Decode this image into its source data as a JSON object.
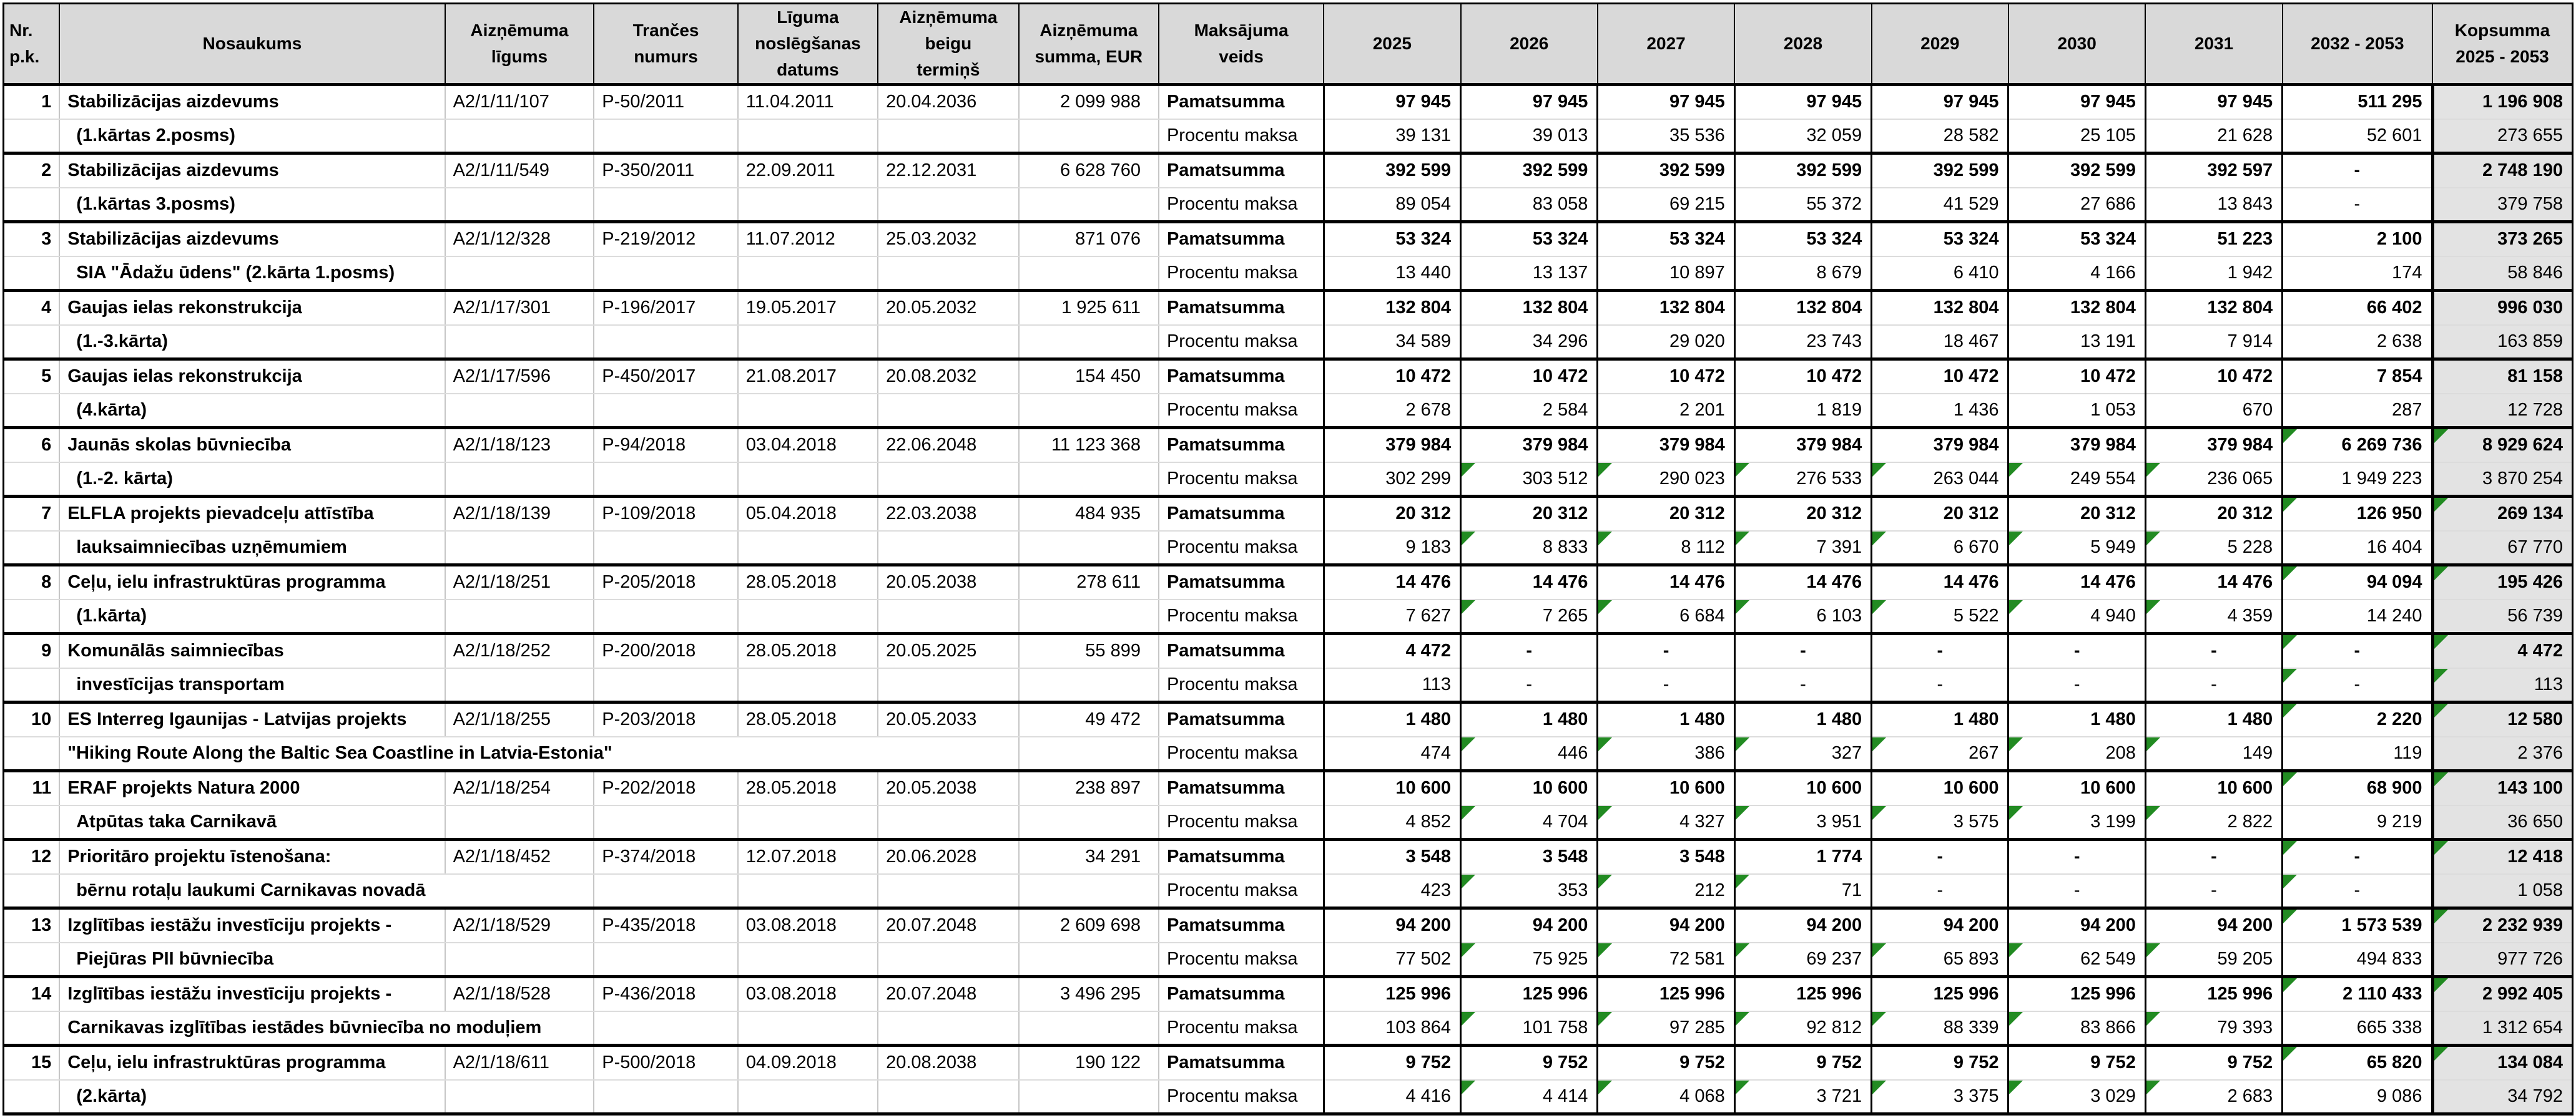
{
  "colors": {
    "header_bg": "#d9d9d9",
    "total_column_bg": "#e3e3e3",
    "flag_triangle_green": "#228B22",
    "grid_light": "#c6c6c6",
    "grid_dark": "#000000"
  },
  "table": {
    "headers": [
      "Nr.\np.k.",
      "Nosaukums",
      "Aizņēmuma\nlīgums",
      "Trančes\nnumurs",
      "Līguma\nnoslēgšanas\ndatums",
      "Aizņēmuma\nbeigu\ntermiņš",
      "Aizņēmuma\nsumma, EUR",
      "Maksājuma\nveids",
      "2025",
      "2026",
      "2027",
      "2028",
      "2029",
      "2030",
      "2031",
      "2032 - 2053",
      "Kopsumma\n2025 - 2053"
    ],
    "payment_labels": {
      "principal": "Pamatsumma",
      "interest": "Procentu maksa"
    },
    "rows": [
      {
        "nr": "1",
        "name": [
          "Stabilizācijas aizdevums",
          "(1.kārtas 2.posms)"
        ],
        "name2_span": 1,
        "name2_indent": true,
        "ligums": "A2/1/11/107",
        "trance": "P-50/2011",
        "noslegsanas": "11.04.2011",
        "beigu": "20.04.2036",
        "summa": "2 099 988",
        "pamatsumma": [
          "97 945",
          "97 945",
          "97 945",
          "97 945",
          "97 945",
          "97 945",
          "97 945",
          "511 295",
          "1 196 908"
        ],
        "pam_flags": [],
        "procentu": [
          "39 131",
          "39 013",
          "35 536",
          "32 059",
          "28 582",
          "25 105",
          "21 628",
          "52 601",
          "273 655"
        ],
        "proc_flags": []
      },
      {
        "nr": "2",
        "name": [
          "Stabilizācijas aizdevums",
          "(1.kārtas 3.posms)"
        ],
        "name2_span": 1,
        "name2_indent": true,
        "ligums": "A2/1/11/549",
        "trance": "P-350/2011",
        "noslegsanas": "22.09.2011",
        "beigu": "22.12.2031",
        "summa": "6 628 760",
        "pamatsumma": [
          "392 599",
          "392 599",
          "392 599",
          "392 599",
          "392 599",
          "392 599",
          "392 597",
          "-",
          "2 748 190"
        ],
        "pam_flags": [],
        "procentu": [
          "89 054",
          "83 058",
          "69 215",
          "55 372",
          "41 529",
          "27 686",
          "13 843",
          "-",
          "379 758"
        ],
        "proc_flags": []
      },
      {
        "nr": "3",
        "name": [
          "Stabilizācijas aizdevums",
          "SIA \"Ādažu ūdens\" (2.kārta 1.posms)"
        ],
        "name2_span": 1,
        "name2_indent": true,
        "ligums": "A2/1/12/328",
        "trance": "P-219/2012",
        "noslegsanas": "11.07.2012",
        "beigu": "25.03.2032",
        "summa": "871 076",
        "pamatsumma": [
          "53 324",
          "53 324",
          "53 324",
          "53 324",
          "53 324",
          "53 324",
          "51 223",
          "2 100",
          "373 265"
        ],
        "pam_flags": [],
        "procentu": [
          "13 440",
          "13 137",
          "10 897",
          "8 679",
          "6 410",
          "4 166",
          "1 942",
          "174",
          "58 846"
        ],
        "proc_flags": []
      },
      {
        "nr": "4",
        "name": [
          "Gaujas ielas rekonstrukcija",
          "(1.-3.kārta)"
        ],
        "name2_span": 1,
        "name2_indent": true,
        "ligums": "A2/1/17/301",
        "trance": "P-196/2017",
        "noslegsanas": "19.05.2017",
        "beigu": "20.05.2032",
        "summa": "1 925 611",
        "pamatsumma": [
          "132 804",
          "132 804",
          "132 804",
          "132 804",
          "132 804",
          "132 804",
          "132 804",
          "66 402",
          "996 030"
        ],
        "pam_flags": [],
        "procentu": [
          "34 589",
          "34 296",
          "29 020",
          "23 743",
          "18 467",
          "13 191",
          "7 914",
          "2 638",
          "163 859"
        ],
        "proc_flags": []
      },
      {
        "nr": "5",
        "name": [
          "Gaujas ielas rekonstrukcija",
          "(4.kārta)"
        ],
        "name2_span": 1,
        "name2_indent": true,
        "ligums": "A2/1/17/596",
        "trance": "P-450/2017",
        "noslegsanas": "21.08.2017",
        "beigu": "20.08.2032",
        "summa": "154 450",
        "pamatsumma": [
          "10 472",
          "10 472",
          "10 472",
          "10 472",
          "10 472",
          "10 472",
          "10 472",
          "7 854",
          "81 158"
        ],
        "pam_flags": [],
        "procentu": [
          "2 678",
          "2 584",
          "2 201",
          "1 819",
          "1 436",
          "1 053",
          "670",
          "287",
          "12 728"
        ],
        "proc_flags": []
      },
      {
        "nr": "6",
        "name": [
          "Jaunās skolas būvniecība",
          "(1.-2. kārta)"
        ],
        "name2_span": 1,
        "name2_indent": true,
        "ligums": "A2/1/18/123",
        "trance": "P-94/2018",
        "noslegsanas": "03.04.2018",
        "beigu": "22.06.2048",
        "summa": "11 123 368",
        "pamatsumma": [
          "379 984",
          "379 984",
          "379 984",
          "379 984",
          "379 984",
          "379 984",
          "379 984",
          "6 269 736",
          "8 929 624"
        ],
        "pam_flags": [
          7,
          8
        ],
        "procentu": [
          "302 299",
          "303 512",
          "290 023",
          "276 533",
          "263 044",
          "249 554",
          "236 065",
          "1 949 223",
          "3 870 254"
        ],
        "proc_flags": [
          1,
          2,
          3,
          4,
          5,
          6
        ]
      },
      {
        "nr": "7",
        "name": [
          "ELFLA projekts pievadceļu attīstība",
          "lauksaimniecības uzņēmumiem"
        ],
        "name2_span": 1,
        "name2_indent": true,
        "ligums": "A2/1/18/139",
        "trance": "P-109/2018",
        "noslegsanas": "05.04.2018",
        "beigu": "22.03.2038",
        "summa": "484 935",
        "pamatsumma": [
          "20 312",
          "20 312",
          "20 312",
          "20 312",
          "20 312",
          "20 312",
          "20 312",
          "126 950",
          "269 134"
        ],
        "pam_flags": [
          7,
          8
        ],
        "procentu": [
          "9 183",
          "8 833",
          "8 112",
          "7 391",
          "6 670",
          "5 949",
          "5 228",
          "16 404",
          "67 770"
        ],
        "proc_flags": [
          1,
          2,
          3,
          4,
          5,
          6
        ]
      },
      {
        "nr": "8",
        "name": [
          "Ceļu, ielu infrastruktūras programma",
          "(1.kārta)"
        ],
        "name2_span": 1,
        "name2_indent": true,
        "ligums": "A2/1/18/251",
        "trance": "P-205/2018",
        "noslegsanas": "28.05.2018",
        "beigu": "20.05.2038",
        "summa": "278 611",
        "pamatsumma": [
          "14 476",
          "14 476",
          "14 476",
          "14 476",
          "14 476",
          "14 476",
          "14 476",
          "94 094",
          "195 426"
        ],
        "pam_flags": [
          7,
          8
        ],
        "procentu": [
          "7 627",
          "7 265",
          "6 684",
          "6 103",
          "5 522",
          "4 940",
          "4 359",
          "14 240",
          "56 739"
        ],
        "proc_flags": [
          1,
          2,
          3,
          4,
          5,
          6
        ]
      },
      {
        "nr": "9",
        "name": [
          "Komunālās saimniecības",
          "investīcijas transportam"
        ],
        "name2_span": 1,
        "name2_indent": true,
        "ligums": "A2/1/18/252",
        "trance": "P-200/2018",
        "noslegsanas": "28.05.2018",
        "beigu": "20.05.2025",
        "summa": "55 899",
        "pamatsumma": [
          "4 472",
          "-",
          "-",
          "-",
          "-",
          "-",
          "-",
          "-",
          "4 472"
        ],
        "pam_flags": [
          7,
          8
        ],
        "procentu": [
          "113",
          "-",
          "-",
          "-",
          "-",
          "-",
          "-",
          "-",
          "113"
        ],
        "proc_flags": [
          7,
          8
        ]
      },
      {
        "nr": "10",
        "name": [
          "ES Interreg Igaunijas - Latvijas projekts",
          "\"Hiking Route Along the Baltic Sea Coastline in Latvia-Estonia\""
        ],
        "name2_span": 5,
        "name2_indent": false,
        "ligums": "A2/1/18/255",
        "trance": "P-203/2018",
        "noslegsanas": "28.05.2018",
        "beigu": "20.05.2033",
        "summa": "49 472",
        "pamatsumma": [
          "1 480",
          "1 480",
          "1 480",
          "1 480",
          "1 480",
          "1 480",
          "1 480",
          "2 220",
          "12 580"
        ],
        "pam_flags": [
          7,
          8
        ],
        "procentu": [
          "474",
          "446",
          "386",
          "327",
          "267",
          "208",
          "149",
          "119",
          "2 376"
        ],
        "proc_flags": [
          1,
          2,
          3,
          4,
          5,
          6
        ]
      },
      {
        "nr": "11",
        "name": [
          "ERAF projekts Natura 2000",
          "Atpūtas taka Carnikavā"
        ],
        "name2_span": 1,
        "name2_indent": true,
        "ligums": "A2/1/18/254",
        "trance": "P-202/2018",
        "noslegsanas": "28.05.2018",
        "beigu": "20.05.2038",
        "summa": "238 897",
        "pamatsumma": [
          "10 600",
          "10 600",
          "10 600",
          "10 600",
          "10 600",
          "10 600",
          "10 600",
          "68 900",
          "143 100"
        ],
        "pam_flags": [
          7,
          8
        ],
        "procentu": [
          "4 852",
          "4 704",
          "4 327",
          "3 951",
          "3 575",
          "3 199",
          "2 822",
          "9 219",
          "36 650"
        ],
        "proc_flags": [
          1,
          2,
          3,
          4,
          5,
          6
        ]
      },
      {
        "nr": "12",
        "name": [
          "Prioritāro projektu īstenošana:",
          "bērnu rotaļu laukumi Carnikavas novadā"
        ],
        "name2_span": 2,
        "name2_indent": true,
        "ligums": "A2/1/18/452",
        "trance": "P-374/2018",
        "noslegsanas": "12.07.2018",
        "beigu": "20.06.2028",
        "summa": "34 291",
        "pamatsumma": [
          "3 548",
          "3 548",
          "3 548",
          "1 774",
          "-",
          "-",
          "-",
          "-",
          "12 418"
        ],
        "pam_flags": [
          7,
          8
        ],
        "procentu": [
          "423",
          "353",
          "212",
          "71",
          "-",
          "-",
          "-",
          "-",
          "1 058"
        ],
        "proc_flags": [
          1,
          2,
          3,
          7
        ]
      },
      {
        "nr": "13",
        "name": [
          "Izglītības iestāžu investīciju projekts -",
          "Piejūras PII būvniecība"
        ],
        "name2_span": 1,
        "name2_indent": true,
        "ligums": "A2/1/18/529",
        "trance": "P-435/2018",
        "noslegsanas": "03.08.2018",
        "beigu": "20.07.2048",
        "summa": "2 609 698",
        "pamatsumma": [
          "94 200",
          "94 200",
          "94 200",
          "94 200",
          "94 200",
          "94 200",
          "94 200",
          "1 573 539",
          "2 232 939"
        ],
        "pam_flags": [
          7,
          8
        ],
        "procentu": [
          "77 502",
          "75 925",
          "72 581",
          "69 237",
          "65 893",
          "62 549",
          "59 205",
          "494 833",
          "977 726"
        ],
        "proc_flags": [
          1,
          2,
          3,
          4,
          5,
          6
        ]
      },
      {
        "nr": "14",
        "name": [
          "Izglītības iestāžu investīciju projekts -",
          "Carnikavas izglītības iestādes būvniecība no moduļiem"
        ],
        "name2_span": 2,
        "name2_indent": false,
        "ligums": "A2/1/18/528",
        "trance": "P-436/2018",
        "noslegsanas": "03.08.2018",
        "beigu": "20.07.2048",
        "summa": "3 496 295",
        "pamatsumma": [
          "125 996",
          "125 996",
          "125 996",
          "125 996",
          "125 996",
          "125 996",
          "125 996",
          "2 110 433",
          "2 992 405"
        ],
        "pam_flags": [
          7,
          8
        ],
        "procentu": [
          "103 864",
          "101 758",
          "97 285",
          "92 812",
          "88 339",
          "83 866",
          "79 393",
          "665 338",
          "1 312 654"
        ],
        "proc_flags": [
          1,
          2,
          3,
          4,
          5,
          6
        ]
      },
      {
        "nr": "15",
        "name": [
          "Ceļu, ielu infrastruktūras programma",
          "(2.kārta)"
        ],
        "name2_span": 1,
        "name2_indent": true,
        "ligums": "A2/1/18/611",
        "trance": "P-500/2018",
        "noslegsanas": "04.09.2018",
        "beigu": "20.08.2038",
        "summa": "190 122",
        "pamatsumma": [
          "9 752",
          "9 752",
          "9 752",
          "9 752",
          "9 752",
          "9 752",
          "9 752",
          "65 820",
          "134 084"
        ],
        "pam_flags": [
          7,
          8
        ],
        "procentu": [
          "4 416",
          "4 414",
          "4 068",
          "3 721",
          "3 375",
          "3 029",
          "2 683",
          "9 086",
          "34 792"
        ],
        "proc_flags": [
          1,
          2,
          3,
          4,
          5,
          6
        ]
      }
    ]
  }
}
